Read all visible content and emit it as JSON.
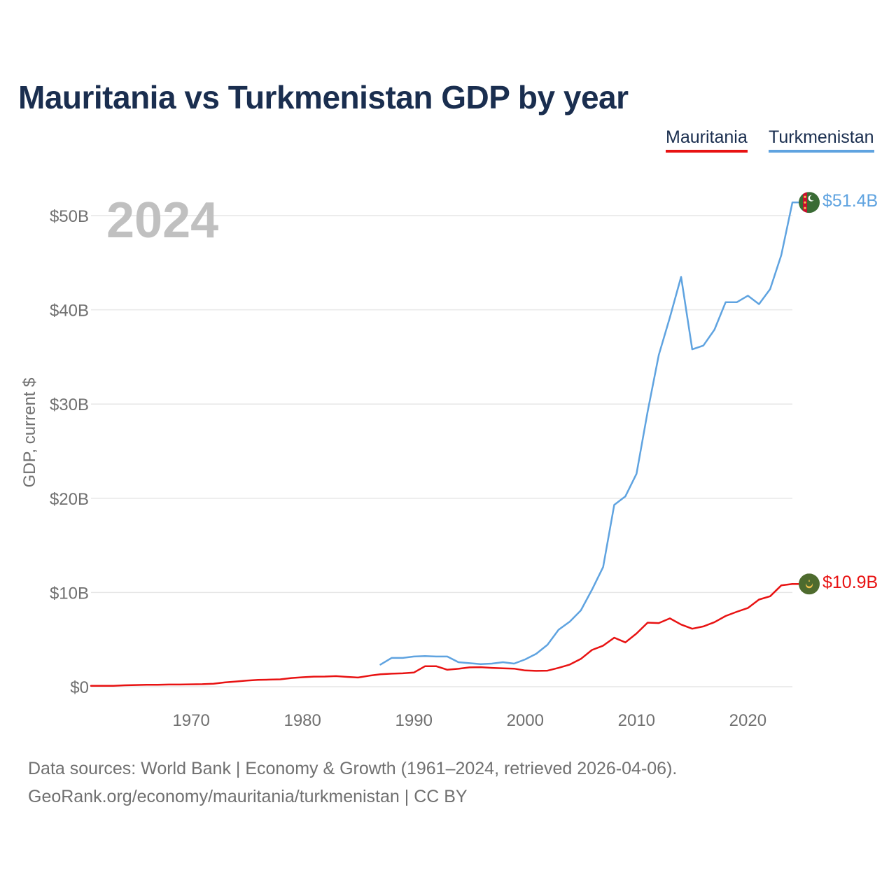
{
  "title": "Mauritania vs Turkmenistan GDP by year",
  "legend": {
    "mauritania": "Mauritania",
    "turkmenistan": "Turkmenistan"
  },
  "footer": {
    "sources": "Data sources: World Bank | Economy & Growth (1961–2024, retrieved 2026-04-06).",
    "credit": "GeoRank.org/economy/mauritania/turkmenistan | CC BY"
  },
  "chart_data": {
    "type": "line",
    "title": "Mauritania vs Turkmenistan GDP by year",
    "xlabel": "",
    "ylabel": "GDP, current $",
    "year_label": "2024",
    "xlim": [
      1961,
      2024
    ],
    "ylim": [
      0,
      50
    ],
    "y_unit": "billions USD",
    "x_ticks": [
      1970,
      1980,
      1990,
      2000,
      2010,
      2020
    ],
    "y_ticks": [
      0,
      10,
      20,
      30,
      40,
      50
    ],
    "y_tick_labels": [
      "$0",
      "$10B",
      "$20B",
      "$30B",
      "$40B",
      "$50B"
    ],
    "grid": true,
    "legend_position": "top-right",
    "series": [
      {
        "name": "Mauritania",
        "color": "#e81212",
        "end_label": "$10.9B",
        "x": [
          1961,
          1962,
          1963,
          1964,
          1965,
          1966,
          1967,
          1968,
          1969,
          1970,
          1971,
          1972,
          1973,
          1974,
          1975,
          1976,
          1977,
          1978,
          1979,
          1980,
          1981,
          1982,
          1983,
          1984,
          1985,
          1986,
          1987,
          1988,
          1989,
          1990,
          1991,
          1992,
          1993,
          1994,
          1995,
          1996,
          1997,
          1998,
          1999,
          2000,
          2001,
          2002,
          2003,
          2004,
          2005,
          2006,
          2007,
          2008,
          2009,
          2010,
          2011,
          2012,
          2013,
          2014,
          2015,
          2016,
          2017,
          2018,
          2019,
          2020,
          2021,
          2022,
          2023,
          2024
        ],
        "values": [
          0.1,
          0.1,
          0.1,
          0.15,
          0.18,
          0.2,
          0.21,
          0.23,
          0.23,
          0.25,
          0.27,
          0.32,
          0.45,
          0.55,
          0.65,
          0.72,
          0.75,
          0.78,
          0.92,
          1.0,
          1.07,
          1.08,
          1.12,
          1.04,
          0.97,
          1.17,
          1.32,
          1.38,
          1.42,
          1.5,
          2.17,
          2.18,
          1.8,
          1.9,
          2.05,
          2.07,
          2.0,
          1.95,
          1.92,
          1.72,
          1.68,
          1.7,
          2.0,
          2.35,
          2.95,
          3.9,
          4.35,
          5.2,
          4.7,
          5.65,
          6.8,
          6.75,
          7.25,
          6.6,
          6.15,
          6.4,
          6.85,
          7.5,
          7.95,
          8.35,
          9.25,
          9.6,
          10.75,
          10.9
        ]
      },
      {
        "name": "Turkmenistan",
        "color": "#5fa3e0",
        "end_label": "$51.4B",
        "x": [
          1987,
          1988,
          1989,
          1990,
          1991,
          1992,
          1993,
          1994,
          1995,
          1996,
          1997,
          1998,
          1999,
          2000,
          2001,
          2002,
          2003,
          2004,
          2005,
          2006,
          2007,
          2008,
          2009,
          2010,
          2011,
          2012,
          2013,
          2014,
          2015,
          2016,
          2017,
          2018,
          2019,
          2020,
          2021,
          2022,
          2023,
          2024
        ],
        "values": [
          2.35,
          3.05,
          3.05,
          3.2,
          3.25,
          3.2,
          3.2,
          2.6,
          2.5,
          2.4,
          2.45,
          2.6,
          2.45,
          2.9,
          3.5,
          4.45,
          6.05,
          6.9,
          8.1,
          10.3,
          12.7,
          19.3,
          20.2,
          22.6,
          29.2,
          35.2,
          39.2,
          43.5,
          35.8,
          36.2,
          37.9,
          40.8,
          40.8,
          41.5,
          40.6,
          42.2,
          45.8,
          51.4
        ]
      }
    ]
  }
}
